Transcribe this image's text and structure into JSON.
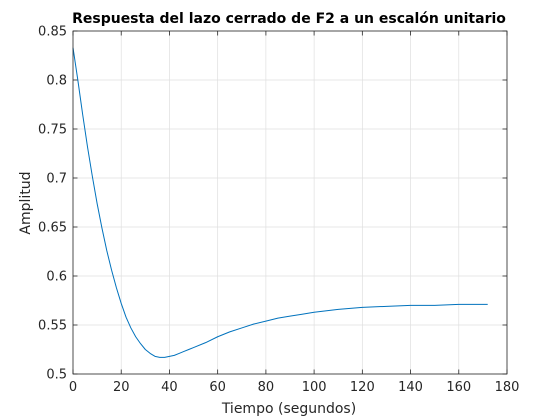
{
  "chart_data": {
    "type": "line",
    "title": "Respuesta del lazo cerrado de F2 a un escalón unitario",
    "xlabel": "Tiempo (segundos)",
    "ylabel": "Amplitud",
    "xlim": [
      0,
      180
    ],
    "ylim": [
      0.5,
      0.85
    ],
    "xticks": [
      0,
      20,
      40,
      60,
      80,
      100,
      120,
      140,
      160,
      180
    ],
    "yticks": [
      0.5,
      0.55,
      0.6,
      0.65,
      0.7,
      0.75,
      0.8,
      0.85
    ],
    "xtick_labels": [
      "0",
      "20",
      "40",
      "60",
      "80",
      "100",
      "120",
      "140",
      "160",
      "180"
    ],
    "ytick_labels": [
      "0.5",
      "0.55",
      "0.6",
      "0.65",
      "0.7",
      "0.75",
      "0.8",
      "0.85"
    ],
    "grid": true,
    "line_color": "#0072bd",
    "series": [
      {
        "x": [
          0,
          2,
          4,
          6,
          8,
          10,
          12,
          14,
          16,
          18,
          20,
          22,
          24,
          26,
          28,
          30,
          32,
          34,
          36,
          38,
          40,
          42,
          44,
          46,
          48,
          50,
          55,
          60,
          65,
          70,
          75,
          80,
          85,
          90,
          95,
          100,
          110,
          120,
          130,
          140,
          150,
          160,
          172
        ],
        "y": [
          0.833,
          0.8,
          0.765,
          0.732,
          0.702,
          0.674,
          0.649,
          0.626,
          0.606,
          0.588,
          0.572,
          0.558,
          0.547,
          0.538,
          0.531,
          0.525,
          0.521,
          0.518,
          0.517,
          0.517,
          0.518,
          0.519,
          0.521,
          0.523,
          0.525,
          0.527,
          0.532,
          0.538,
          0.543,
          0.547,
          0.551,
          0.554,
          0.557,
          0.559,
          0.561,
          0.563,
          0.566,
          0.568,
          0.569,
          0.57,
          0.57,
          0.571,
          0.571
        ]
      }
    ]
  }
}
